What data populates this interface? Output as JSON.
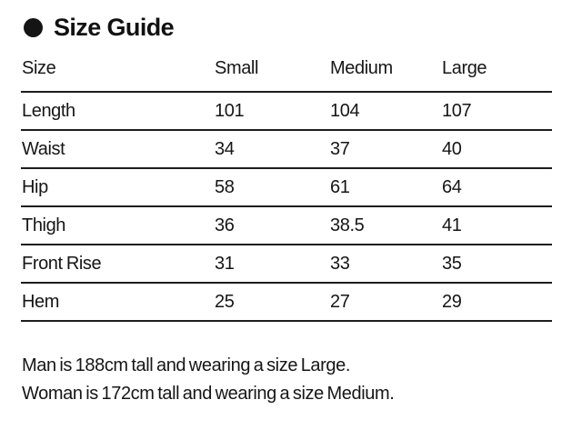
{
  "title": "Size Guide",
  "table": {
    "headers": [
      "Size",
      "Small",
      "Medium",
      "Large"
    ],
    "rows": [
      {
        "label": "Length",
        "values": [
          "101",
          "104",
          "107"
        ]
      },
      {
        "label": "Waist",
        "values": [
          "34",
          "37",
          "40"
        ]
      },
      {
        "label": "Hip",
        "values": [
          "58",
          "61",
          "64"
        ]
      },
      {
        "label": "Thigh",
        "values": [
          "36",
          "38.5",
          "41"
        ]
      },
      {
        "label": "Front Rise",
        "values": [
          "31",
          "33",
          "35"
        ]
      },
      {
        "label": "Hem",
        "values": [
          "25",
          "27",
          "29"
        ]
      }
    ]
  },
  "footnotes": [
    "Man is 188cm tall and wearing a size Large.",
    "Woman is 172cm tall and wearing a size Medium."
  ],
  "colors": {
    "text": "#161616",
    "rule": "#1d1d1d",
    "background": "#ffffff",
    "bullet": "#141414"
  }
}
